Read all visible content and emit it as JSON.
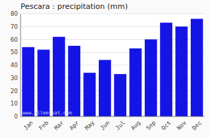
{
  "chart_data": {
    "type": "bar",
    "title": "Pescara : precipitation (mm)",
    "categories": [
      "Jan",
      "Feb",
      "Mar",
      "Apr",
      "May",
      "Jun",
      "Jul",
      "Aug",
      "Sep",
      "Oct",
      "Nov",
      "Dec"
    ],
    "values": [
      54,
      52,
      62,
      55,
      34,
      44,
      33,
      53,
      60,
      73,
      70,
      76
    ],
    "color": "#1414e6",
    "ylim": [
      0,
      80
    ],
    "yticks": [
      0,
      10,
      20,
      30,
      40,
      50,
      60,
      70,
      80
    ],
    "grid": true,
    "annotations": [
      "www.allmetsat.com"
    ]
  }
}
